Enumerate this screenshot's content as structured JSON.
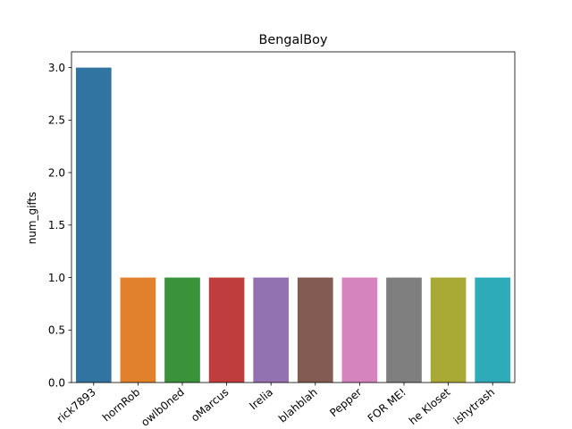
{
  "chart_data": {
    "type": "bar",
    "title": "BengalBoy",
    "xlabel": "",
    "ylabel": "num_gifts",
    "categories": [
      "rick7893",
      "hornRob",
      "owlb0ned",
      "oMarcus",
      "Irelia",
      "blahblah",
      "Pepper",
      "FOR ME!",
      "he Kloset",
      "ishytrash"
    ],
    "values": [
      3,
      1,
      1,
      1,
      1,
      1,
      1,
      1,
      1,
      1
    ],
    "colors": [
      "#3274a1",
      "#e1812c",
      "#3a923a",
      "#c03d3e",
      "#9372b2",
      "#845b53",
      "#d684bd",
      "#7f7f7f",
      "#a9aa35",
      "#2eabb8"
    ],
    "ylim": [
      0,
      3.15
    ],
    "yticks": [
      "0.0",
      "0.5",
      "1.0",
      "1.5",
      "2.0",
      "2.5",
      "3.0"
    ],
    "grid": false,
    "legend": "none"
  }
}
